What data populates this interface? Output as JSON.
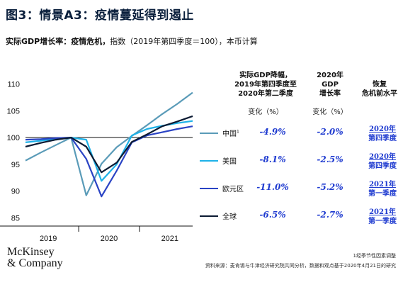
{
  "title": "图3：情景A3：疫情蔓延得到遏止",
  "subtitle": {
    "bold": "实际GDP增长率：疫情危机，",
    "normal": "指数（2019年第四季度＝100），本币计算"
  },
  "columns": {
    "decline_head": [
      "实际GDP降幅，",
      "2019年第四季度至",
      "2020年第二季度"
    ],
    "decline_sub": "变化（%）",
    "growth_head": [
      "2020年",
      "GDP",
      "增长率"
    ],
    "growth_sub": "变化（%）",
    "recovery_head": [
      "恢复",
      "危机前水平"
    ]
  },
  "rows": [
    {
      "label": "中国",
      "sup": "1",
      "color": "#5a9bb8",
      "decline": "-4.9%",
      "growth": "-2.0%",
      "recovery": [
        "2020年",
        "第四季度"
      ]
    },
    {
      "label": "美国",
      "sup": "",
      "color": "#1eb2e8",
      "decline": "-8.1%",
      "growth": "-2.5%",
      "recovery": [
        "2020年",
        "第四季度"
      ]
    },
    {
      "label": "欧元区",
      "sup": "",
      "color": "#2a43c4",
      "decline": "-11.0%",
      "growth": "-5.2%",
      "recovery": [
        "2021年",
        "第一季度"
      ]
    },
    {
      "label": "全球",
      "sup": "",
      "color": "#0b1a33",
      "decline": "-6.5%",
      "growth": "-2.7%",
      "recovery": [
        "2021年",
        "第一季度"
      ]
    }
  ],
  "footnote": "1经季节性因素调整",
  "source": "资料来源：麦肯锡与牛津经济研究院共同分析，数据和观点基于2020年4月21日的研究",
  "logo": [
    "McKinsey",
    "& Company"
  ],
  "chart_data": {
    "type": "line",
    "x": [
      "2019Q1",
      "2019Q2",
      "2019Q3",
      "2019Q4",
      "2020Q1",
      "2020Q2",
      "2020Q3",
      "2020Q4",
      "2021Q1",
      "2021Q2",
      "2021Q3",
      "2021Q4"
    ],
    "xtick_labels": [
      "2019",
      "2020",
      "2021"
    ],
    "yticks": [
      85,
      90,
      95,
      100,
      105,
      110
    ],
    "ylim": [
      84,
      111
    ],
    "reference_line": 100,
    "series": [
      {
        "name": "中国",
        "color": "#5a9bb8",
        "values": [
          95.7,
          97.2,
          98.6,
          100.0,
          89.2,
          95.1,
          98.2,
          100.3,
          102.3,
          104.4,
          106.3,
          108.4
        ]
      },
      {
        "name": "美国",
        "color": "#1eb2e8",
        "values": [
          99.1,
          99.4,
          99.7,
          100.0,
          99.6,
          91.9,
          95.0,
          100.4,
          101.6,
          102.2,
          102.7,
          103.1
        ]
      },
      {
        "name": "欧元区",
        "color": "#2a43c4",
        "values": [
          99.6,
          99.7,
          99.9,
          100.0,
          96.0,
          89.0,
          93.8,
          99.1,
          100.4,
          101.0,
          101.6,
          102.1
        ]
      },
      {
        "name": "全球",
        "color": "#0b1a33",
        "values": [
          98.3,
          99.0,
          99.6,
          100.0,
          98.3,
          93.5,
          95.3,
          99.2,
          100.6,
          102.1,
          103.0,
          104.0
        ]
      }
    ]
  }
}
